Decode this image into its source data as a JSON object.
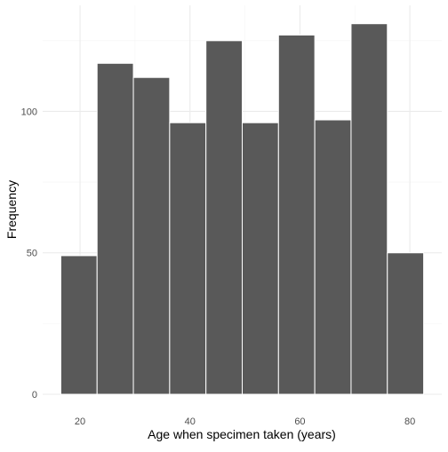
{
  "chart_data": {
    "type": "bar",
    "subtype": "histogram",
    "title": "",
    "xlabel": "Age when specimen taken (years)",
    "ylabel": "Frequency",
    "bins": [
      {
        "x0": 16.5,
        "x1": 23.1,
        "count": 49
      },
      {
        "x0": 23.1,
        "x1": 29.7,
        "count": 117
      },
      {
        "x0": 29.7,
        "x1": 36.3,
        "count": 112
      },
      {
        "x0": 36.3,
        "x1": 42.9,
        "count": 96
      },
      {
        "x0": 42.9,
        "x1": 49.5,
        "count": 125
      },
      {
        "x0": 49.5,
        "x1": 56.1,
        "count": 96
      },
      {
        "x0": 56.1,
        "x1": 62.7,
        "count": 127
      },
      {
        "x0": 62.7,
        "x1": 69.3,
        "count": 97
      },
      {
        "x0": 69.3,
        "x1": 75.9,
        "count": 131
      },
      {
        "x0": 75.9,
        "x1": 82.5,
        "count": 50
      }
    ],
    "xlim": [
      13.2,
      85.8
    ],
    "ylim": [
      0,
      137.5
    ],
    "x_ticks": [
      20,
      40,
      60,
      80
    ],
    "x_tick_labels": [
      "20",
      "40",
      "60",
      "80"
    ],
    "x_minor_ticks": [
      30,
      50,
      70
    ],
    "y_ticks": [
      0,
      50,
      100
    ],
    "y_tick_labels": [
      "0",
      "50",
      "100"
    ],
    "y_minor_ticks": [
      25,
      75,
      125
    ],
    "grid": true,
    "legend": "none",
    "colors": {
      "bar_fill": "#595959",
      "bar_stroke": "#ffffff",
      "grid_major": "#ebebeb",
      "grid_minor": "#f5f5f5",
      "tick_text": "#4d4d4d",
      "axis_title": "#000000"
    }
  }
}
